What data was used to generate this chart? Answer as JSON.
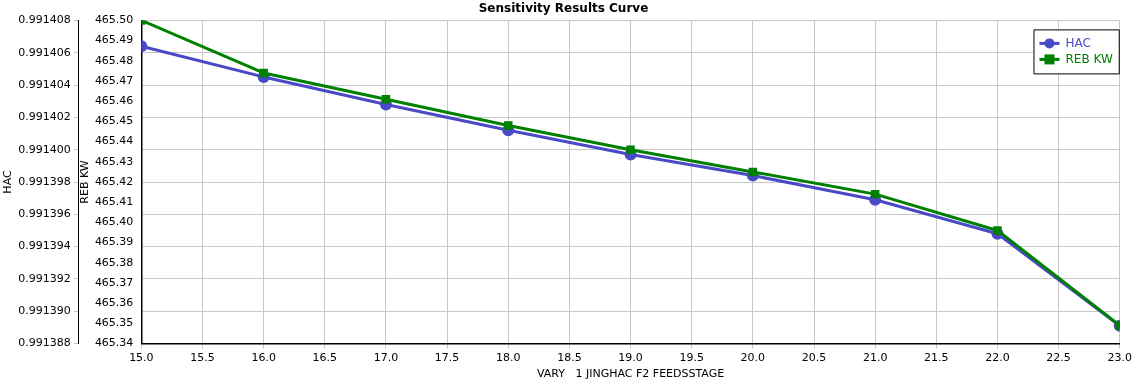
{
  "chart_data": {
    "type": "line",
    "title": "Sensitivity Results Curve",
    "xlabel": "VARY   1 JINGHAC F2 FEEDSSTAGE",
    "ylabel": "HAC",
    "y2label": "REB KW",
    "x": [
      15,
      16,
      17,
      18,
      19,
      20,
      21,
      22,
      23
    ],
    "series": [
      {
        "name": "HAC",
        "color": "#4a4ac8",
        "marker": "circle",
        "values": [
          0.9914064,
          0.9914045,
          0.9914028,
          0.9914012,
          0.9913997,
          0.9913984,
          0.9913969,
          0.9913948,
          0.9913891
        ]
      },
      {
        "name": "REB KW",
        "color": "#008000",
        "marker": "square",
        "axis": "y2",
        "values": [
          465.5,
          465.474,
          465.461,
          465.448,
          465.436,
          465.425,
          465.414,
          465.396,
          465.349
        ]
      }
    ],
    "xlim": [
      15,
      23
    ],
    "xticks": [
      {
        "value": 15,
        "label": "15.0"
      },
      {
        "value": 15.5,
        "label": "15.5"
      },
      {
        "value": 16,
        "label": "16.0"
      },
      {
        "value": 16.5,
        "label": "16.5"
      },
      {
        "value": 17,
        "label": "17.0"
      },
      {
        "value": 17.5,
        "label": "17.5"
      },
      {
        "value": 18,
        "label": "18.0"
      },
      {
        "value": 18.5,
        "label": "18.5"
      },
      {
        "value": 19,
        "label": "19.0"
      },
      {
        "value": 19.5,
        "label": "19.5"
      },
      {
        "value": 20,
        "label": "20.0"
      },
      {
        "value": 20.5,
        "label": "20.5"
      },
      {
        "value": 21,
        "label": "21.0"
      },
      {
        "value": 21.5,
        "label": "21.5"
      },
      {
        "value": 22,
        "label": "22.0"
      },
      {
        "value": 22.5,
        "label": "22.5"
      },
      {
        "value": 23,
        "label": "23.0"
      }
    ],
    "ylim": [
      0.991388,
      0.991408
    ],
    "yticks": [
      0.991388,
      {
        "value": 0.99139,
        "label": "0.991390"
      },
      0.991392,
      0.991394,
      0.991396,
      0.991398,
      {
        "value": 0.9914,
        "label": "0.991400"
      },
      0.991402,
      0.991404,
      0.991406,
      0.991408
    ],
    "y2lim": [
      465.34,
      465.5
    ],
    "y2ticks": [
      {
        "value": 465.34,
        "label": "465.34"
      },
      {
        "value": 465.35,
        "label": "465.35"
      },
      {
        "value": 465.36,
        "label": "465.36"
      },
      {
        "value": 465.37,
        "label": "465.37"
      },
      {
        "value": 465.38,
        "label": "465.38"
      },
      {
        "value": 465.39,
        "label": "465.39"
      },
      {
        "value": 465.4,
        "label": "465.40"
      },
      {
        "value": 465.41,
        "label": "465.41"
      },
      {
        "value": 465.42,
        "label": "465.42"
      },
      {
        "value": 465.43,
        "label": "465.43"
      },
      {
        "value": 465.44,
        "label": "465.44"
      },
      {
        "value": 465.45,
        "label": "465.45"
      },
      {
        "value": 465.46,
        "label": "465.46"
      },
      {
        "value": 465.47,
        "label": "465.47"
      },
      {
        "value": 465.48,
        "label": "465.48"
      },
      {
        "value": 465.49,
        "label": "465.49"
      },
      {
        "value": 465.5,
        "label": "465.50"
      }
    ],
    "grid": true,
    "legend": "top right",
    "line_style": "solid"
  }
}
